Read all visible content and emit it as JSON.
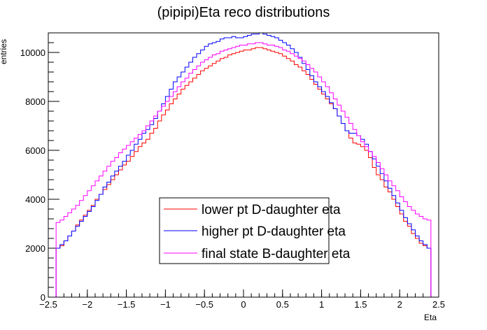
{
  "chart_data": {
    "type": "line",
    "title": "(pipipi)Eta reco distributions",
    "xlabel": "Eta",
    "ylabel": "entries",
    "xlim": [
      -2.5,
      2.5
    ],
    "ylim": [
      0,
      10800
    ],
    "x_ticks": [
      -2.5,
      -2,
      -1.5,
      -1,
      -0.5,
      0,
      0.5,
      1,
      1.5,
      2,
      2.5
    ],
    "x_tick_labels": [
      "−2.5",
      "−2",
      "−1.5",
      "−1",
      "−0.5",
      "0",
      "0.5",
      "1",
      "1.5",
      "2",
      "2.5"
    ],
    "y_ticks": [
      0,
      2000,
      4000,
      6000,
      8000,
      10000
    ],
    "y_tick_labels": [
      "0",
      "2000",
      "4000",
      "6000",
      "8000",
      "10000"
    ],
    "bins": {
      "min": -2.4,
      "max": 2.4,
      "width": 0.05
    },
    "grid": false,
    "legend_position": "bottom-center",
    "series": [
      {
        "name": "lower pt D-daughter eta",
        "color": "#ff0000",
        "values": [
          2000,
          2100,
          2300,
          2500,
          2700,
          2950,
          3150,
          3350,
          3550,
          3750,
          4000,
          4200,
          4400,
          4600,
          4800,
          5000,
          5200,
          5400,
          5550,
          5750,
          5950,
          6150,
          6300,
          6450,
          6700,
          6900,
          7200,
          7450,
          7650,
          7900,
          8100,
          8300,
          8500,
          8650,
          8800,
          8950,
          9100,
          9250,
          9350,
          9450,
          9550,
          9650,
          9750,
          9800,
          9900,
          9950,
          10000,
          10050,
          10100,
          10100,
          10150,
          10200,
          10200,
          10150,
          10100,
          10050,
          10000,
          9950,
          9850,
          9750,
          9650,
          9500,
          9400,
          9250,
          9100,
          8900,
          8700,
          8500,
          8300,
          8100,
          7900,
          7700,
          7400,
          7100,
          6800,
          6500,
          6300,
          6250,
          6150,
          6000,
          5700,
          5300,
          5000,
          4800,
          4500,
          4300,
          4000,
          3700,
          3400,
          3100,
          2900,
          2600,
          2400,
          2200,
          2100,
          2000
        ]
      },
      {
        "name": "higher pt D-daughter eta",
        "color": "#0000ff",
        "values": [
          2000,
          2150,
          2300,
          2500,
          2700,
          2900,
          3100,
          3300,
          3500,
          3700,
          3950,
          4200,
          4500,
          4700,
          4950,
          5150,
          5350,
          5550,
          5800,
          6000,
          6250,
          6450,
          6700,
          6850,
          7050,
          7300,
          7600,
          7900,
          8200,
          8500,
          8800,
          9000,
          9200,
          9400,
          9600,
          9800,
          9950,
          10100,
          10250,
          10350,
          10400,
          10450,
          10550,
          10600,
          10600,
          10650,
          10600,
          10600,
          10650,
          10700,
          10750,
          10750,
          10800,
          10750,
          10700,
          10650,
          10600,
          10500,
          10400,
          10300,
          10150,
          10000,
          9800,
          9550,
          9300,
          9050,
          8800,
          8600,
          8400,
          8200,
          7950,
          7700,
          7400,
          7100,
          6800,
          6700,
          6700,
          6600,
          6450,
          6250,
          5950,
          5650,
          5350,
          5050,
          4750,
          4450,
          4150,
          3850,
          3550,
          3250,
          3000,
          2750,
          2500,
          2300,
          2150,
          2000
        ]
      },
      {
        "name": "final state B-daughter eta",
        "color": "#ff00ff",
        "values": [
          3050,
          3150,
          3300,
          3450,
          3600,
          3750,
          3950,
          4150,
          4350,
          4550,
          4750,
          4950,
          5150,
          5350,
          5550,
          5700,
          5900,
          6050,
          6200,
          6350,
          6500,
          6650,
          6800,
          7000,
          7200,
          7400,
          7600,
          7800,
          8000,
          8200,
          8400,
          8600,
          8800,
          8950,
          9150,
          9300,
          9450,
          9600,
          9700,
          9800,
          9900,
          9950,
          10050,
          10100,
          10150,
          10200,
          10250,
          10300,
          10300,
          10350,
          10350,
          10400,
          10400,
          10350,
          10300,
          10300,
          10250,
          10200,
          10100,
          10050,
          9950,
          9850,
          9750,
          9650,
          9500,
          9350,
          9200,
          9000,
          8800,
          8600,
          8350,
          8100,
          7850,
          7600,
          7350,
          7100,
          6850,
          6600,
          6350,
          6150,
          5950,
          5750,
          5500,
          5250,
          5000,
          4750,
          4550,
          4350,
          4100,
          3900,
          3700,
          3550,
          3400,
          3300,
          3200,
          3150
        ]
      }
    ]
  }
}
